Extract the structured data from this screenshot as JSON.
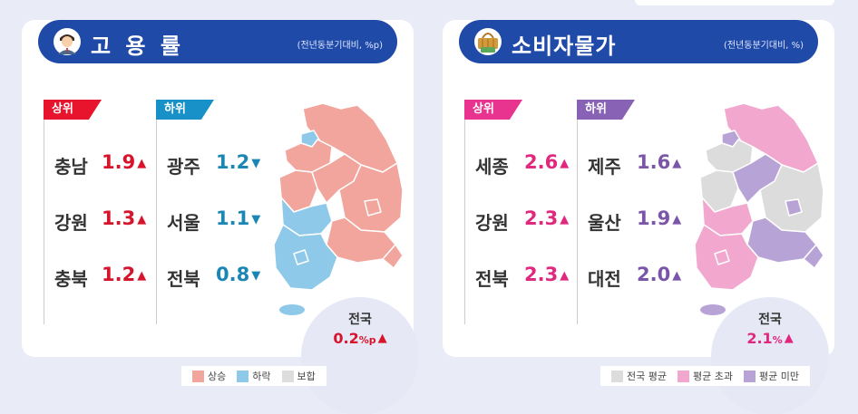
{
  "employment": {
    "title": "고 용 률",
    "note": "(전년동분기대비, %p)",
    "upper_tag": "상위",
    "lower_tag": "하위",
    "upper": [
      {
        "region": "충남",
        "value": "1.9"
      },
      {
        "region": "강원",
        "value": "1.3"
      },
      {
        "region": "충북",
        "value": "1.2"
      }
    ],
    "lower": [
      {
        "region": "광주",
        "value": "1.2"
      },
      {
        "region": "서울",
        "value": "1.1"
      },
      {
        "region": "전북",
        "value": "0.8"
      }
    ],
    "up_arrow": "▲",
    "down_arrow": "▼",
    "national_label": "전국",
    "national_value": "0.2",
    "national_unit": "%p",
    "legend": [
      "상승",
      "하락",
      "보합"
    ],
    "colors": {
      "accent_up": "#d6142c",
      "accent_down": "#1a86b3",
      "tag_up": "#e8132d",
      "tag_down": "#1890c8",
      "rise": "#f2a59c",
      "fall": "#8ec9ea",
      "flat": "#dddddd"
    }
  },
  "cpi": {
    "title": "소비자물가",
    "note": "(전년동분기대비, %)",
    "upper_tag": "상위",
    "lower_tag": "하위",
    "upper": [
      {
        "region": "세종",
        "value": "2.6"
      },
      {
        "region": "강원",
        "value": "2.3"
      },
      {
        "region": "전북",
        "value": "2.3"
      }
    ],
    "lower": [
      {
        "region": "제주",
        "value": "1.6"
      },
      {
        "region": "울산",
        "value": "1.9"
      },
      {
        "region": "대전",
        "value": "2.0"
      }
    ],
    "up_arrow": "▲",
    "national_label": "전국",
    "national_value": "2.1",
    "national_unit": "%",
    "legend": [
      "전국 평균",
      "평균 초과",
      "평균 미만"
    ],
    "colors": {
      "accent_up": "#e0287e",
      "accent_down": "#7a55a8",
      "tag_up": "#e8338f",
      "tag_down": "#8862b5",
      "above": "#f2a7cf",
      "below": "#b8a3d6",
      "avg": "#dcdcdc"
    }
  }
}
